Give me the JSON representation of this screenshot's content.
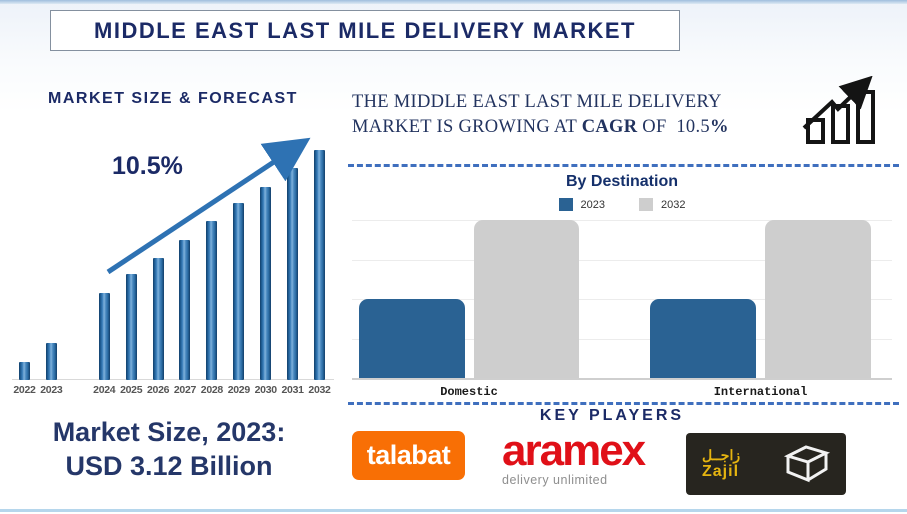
{
  "header": {
    "title": "MIDDLE EAST LAST MILE DELIVERY MARKET"
  },
  "forecast": {
    "section_title": "MARKET SIZE & FORECAST",
    "cagr_annotation": "10.5%",
    "market_size_caption": {
      "line1": "Market Size, 2023:",
      "line2": "USD 3.12 Billion"
    }
  },
  "statement": {
    "text_before": "THE MIDDLE EAST LAST MILE DELIVERY MARKET IS GROWING AT ",
    "bold_term": "CAGR",
    "text_middle": " OF  10.5",
    "bold_suffix": "%"
  },
  "destination": {
    "title": "By Destination",
    "legend": [
      {
        "label": "2023",
        "color": "#2a6293"
      },
      {
        "label": "2032",
        "color": "#cecece"
      }
    ],
    "categories": [
      "Domestic",
      "International"
    ]
  },
  "key_players": {
    "title": "KEY PLAYERS",
    "logos": [
      {
        "name": "talabat",
        "text": "talabat",
        "brand_color": "#f86f05"
      },
      {
        "name": "aramex",
        "text": "aramex",
        "tagline": "delivery unlimited",
        "brand_color": "#e01018"
      },
      {
        "name": "zajil",
        "text": "Zajil",
        "arabic": "زاجــل",
        "brand_color": "#e5b410"
      }
    ]
  },
  "colors": {
    "navy_text": "#1b2a66",
    "forecast_bar_blue": "#2e74b5",
    "destination_blue": "#2a6293",
    "destination_gray": "#cecece",
    "dashed_separator": "#3f6fbe",
    "year_label_gray": "#555555"
  },
  "chart_data": [
    {
      "type": "bar",
      "title": "MARKET SIZE & FORECAST",
      "categories": [
        "2022",
        "2023",
        "2024",
        "2025",
        "2026",
        "2027",
        "2028",
        "2029",
        "2030",
        "2031",
        "2032"
      ],
      "values_relative_height_pct": [
        8,
        16,
        38,
        46,
        53,
        61,
        69,
        77,
        84,
        92,
        100
      ],
      "annotation": "10.5%",
      "known_values": {
        "2023": "USD 3.12 Billion"
      },
      "bar_color": "#2e74b5",
      "y_axis_shown": false,
      "xlabel": "",
      "ylabel": ""
    },
    {
      "type": "bar",
      "title": "By Destination",
      "categories": [
        "Domestic",
        "International"
      ],
      "series": [
        {
          "name": "2023",
          "color": "#2a6293",
          "values_relative_height_pct": [
            50,
            50
          ]
        },
        {
          "name": "2032",
          "color": "#cecece",
          "values_relative_height_pct": [
            100,
            100
          ]
        }
      ],
      "y_axis_shown": false,
      "gridlines": true,
      "legend_position": "top",
      "xlabel": "",
      "ylabel": ""
    }
  ]
}
